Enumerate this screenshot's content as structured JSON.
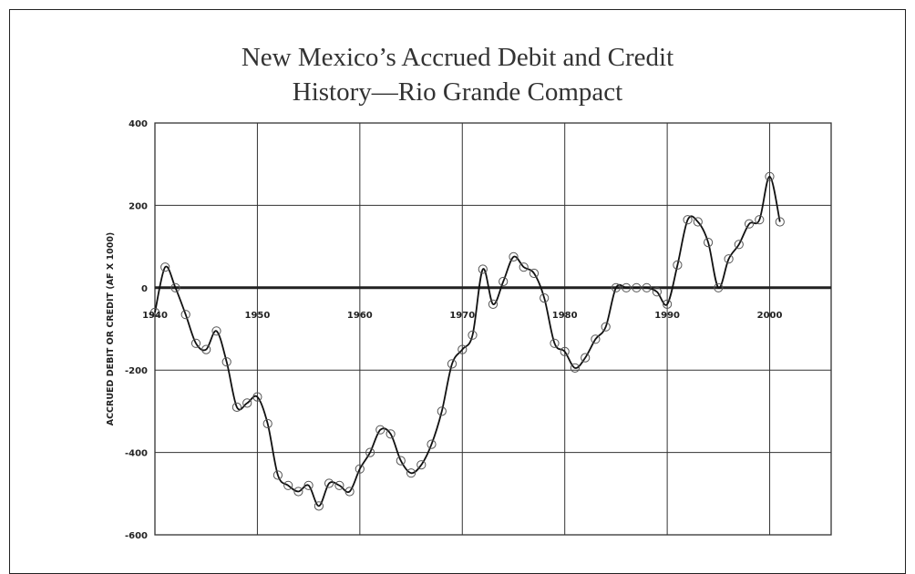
{
  "chart_data": {
    "type": "line",
    "title_lines": [
      "New Mexico’s Accrued Debit and Credit",
      "History—Rio Grande Compact"
    ],
    "ylabel": "ACCRUED DEBIT OR CREDIT (AF X 1000)",
    "xlabel": "",
    "xlim": [
      1940,
      2006
    ],
    "ylim": [
      -600,
      400
    ],
    "x_ticks": [
      1940,
      1950,
      1960,
      1970,
      1980,
      1990,
      2000
    ],
    "x_tick_labels": [
      "1940",
      "1950",
      "1960",
      "1970",
      "1980",
      "1990",
      "2000"
    ],
    "y_ticks": [
      400,
      200,
      0,
      -200,
      -400,
      -600
    ],
    "y_tick_labels": [
      "400",
      "200",
      "0",
      "-200",
      "-400",
      "-600"
    ],
    "grid": true,
    "legend": "none",
    "series": [
      {
        "x": [
          1940,
          1941,
          1942,
          1943,
          1944,
          1945,
          1946,
          1947,
          1948,
          1949,
          1950,
          1951,
          1952,
          1953,
          1954,
          1955,
          1956,
          1957,
          1958,
          1959,
          1960,
          1961,
          1962,
          1963,
          1964,
          1965,
          1966,
          1967,
          1968,
          1969,
          1970,
          1971,
          1972,
          1973,
          1974,
          1975,
          1976,
          1977,
          1978,
          1979,
          1980,
          1981,
          1982,
          1983,
          1984,
          1985,
          1986,
          1987,
          1988,
          1989,
          1990,
          1991,
          1992,
          1993,
          1994,
          1995,
          1996,
          1997,
          1998,
          1999,
          2000,
          2001
        ],
        "y": [
          -60,
          50,
          0,
          -65,
          -135,
          -150,
          -105,
          -180,
          -290,
          -280,
          -265,
          -330,
          -455,
          -480,
          -495,
          -480,
          -530,
          -475,
          -480,
          -495,
          -440,
          -400,
          -345,
          -355,
          -420,
          -450,
          -430,
          -380,
          -300,
          -185,
          -150,
          -115,
          45,
          -40,
          15,
          75,
          50,
          35,
          -25,
          -135,
          -155,
          -195,
          -170,
          -125,
          -95,
          0,
          0,
          0,
          0,
          -10,
          -40,
          55,
          165,
          160,
          110,
          0,
          70,
          105,
          155,
          165,
          270,
          160
        ]
      }
    ],
    "colors": {
      "line": "#111111",
      "marker_stroke": "#555555",
      "grid": "#333333",
      "zero_line": "#222222"
    }
  }
}
